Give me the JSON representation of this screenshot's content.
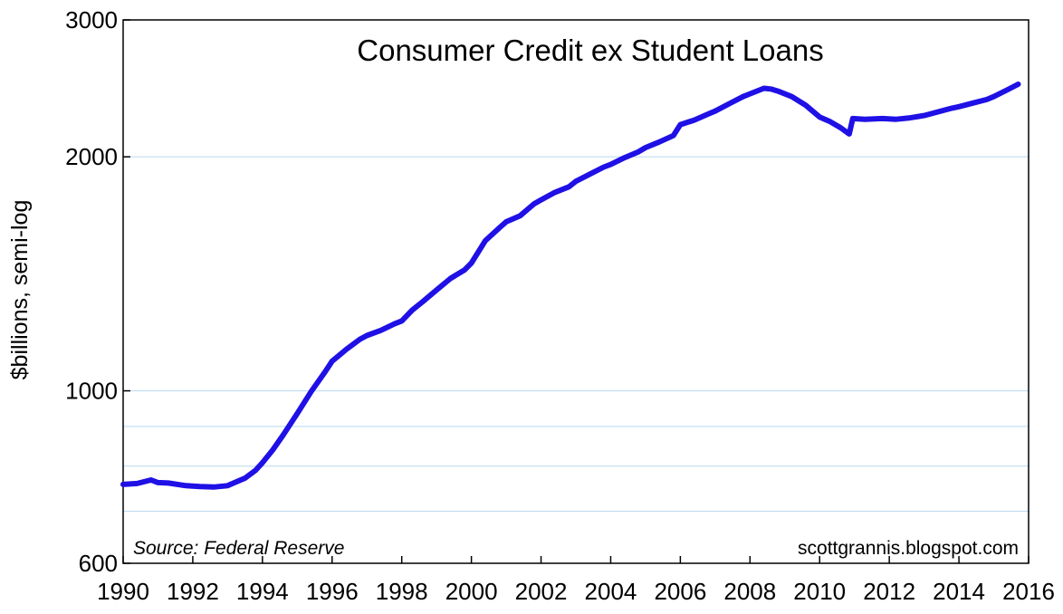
{
  "chart_data": {
    "type": "line",
    "title": "Consumer Credit ex Student Loans",
    "ylabel": "$billions, semi-log",
    "xlabel": "",
    "source": "Source: Federal Reserve",
    "credit": "scottgrannis.blogspot.com",
    "yscale": "log",
    "ylim": [
      600,
      3000
    ],
    "xlim": [
      1990,
      2016
    ],
    "yticks": [
      600,
      1000,
      2000,
      3000
    ],
    "ytick_labels": [
      "600",
      "1000",
      "2000",
      "3000"
    ],
    "yminor_gridlines": [
      700,
      800,
      900
    ],
    "xticks": [
      1990,
      1992,
      1994,
      1996,
      1998,
      2000,
      2002,
      2004,
      2006,
      2008,
      2010,
      2012,
      2014,
      2016
    ],
    "xtick_labels": [
      "1990",
      "1992",
      "1994",
      "1996",
      "1998",
      "2000",
      "2002",
      "2004",
      "2006",
      "2008",
      "2010",
      "2012",
      "2014",
      "2016"
    ],
    "grid": true,
    "line_color": "#1f10e6",
    "grid_color": "#b8d8f0",
    "series": [
      {
        "x": [
          1990.0,
          1990.4,
          1990.8,
          1991.0,
          1991.3,
          1991.8,
          1992.2,
          1992.6,
          1993.0,
          1993.2,
          1993.5,
          1993.8,
          1994.0,
          1994.3,
          1994.6,
          1995.0,
          1995.4,
          1995.8,
          1996.0,
          1996.4,
          1996.8,
          1997.0,
          1997.4,
          1997.8,
          1998.0,
          1998.3,
          1998.6,
          1999.0,
          1999.4,
          1999.8,
          2000.0,
          2000.4,
          2000.8,
          2001.0,
          2001.4,
          2001.8,
          2002.0,
          2002.4,
          2002.8,
          2003.0,
          2003.4,
          2003.8,
          2004.0,
          2004.4,
          2004.8,
          2005.0,
          2005.4,
          2005.8,
          2006.0,
          2006.4,
          2006.8,
          2007.0,
          2007.4,
          2007.8,
          2008.0,
          2008.4,
          2008.6,
          2008.8,
          2009.2,
          2009.6,
          2010.0,
          2010.3,
          2010.6,
          2010.85,
          2010.95,
          2011.3,
          2011.8,
          2012.2,
          2012.6,
          2013.0,
          2013.4,
          2013.8,
          2014.0,
          2014.4,
          2014.8,
          2015.0,
          2015.4,
          2015.7
        ],
        "y": [
          758,
          760,
          768,
          762,
          761,
          755,
          753,
          752,
          755,
          762,
          772,
          790,
          808,
          840,
          878,
          935,
          998,
          1058,
          1092,
          1130,
          1165,
          1178,
          1196,
          1220,
          1230,
          1270,
          1302,
          1348,
          1395,
          1430,
          1460,
          1560,
          1620,
          1650,
          1680,
          1740,
          1760,
          1800,
          1830,
          1860,
          1900,
          1940,
          1955,
          1995,
          2030,
          2055,
          2090,
          2130,
          2200,
          2230,
          2270,
          2290,
          2340,
          2390,
          2410,
          2450,
          2445,
          2430,
          2390,
          2330,
          2250,
          2220,
          2180,
          2140,
          2240,
          2235,
          2240,
          2235,
          2245,
          2260,
          2285,
          2310,
          2320,
          2345,
          2370,
          2390,
          2440,
          2480
        ]
      }
    ]
  }
}
